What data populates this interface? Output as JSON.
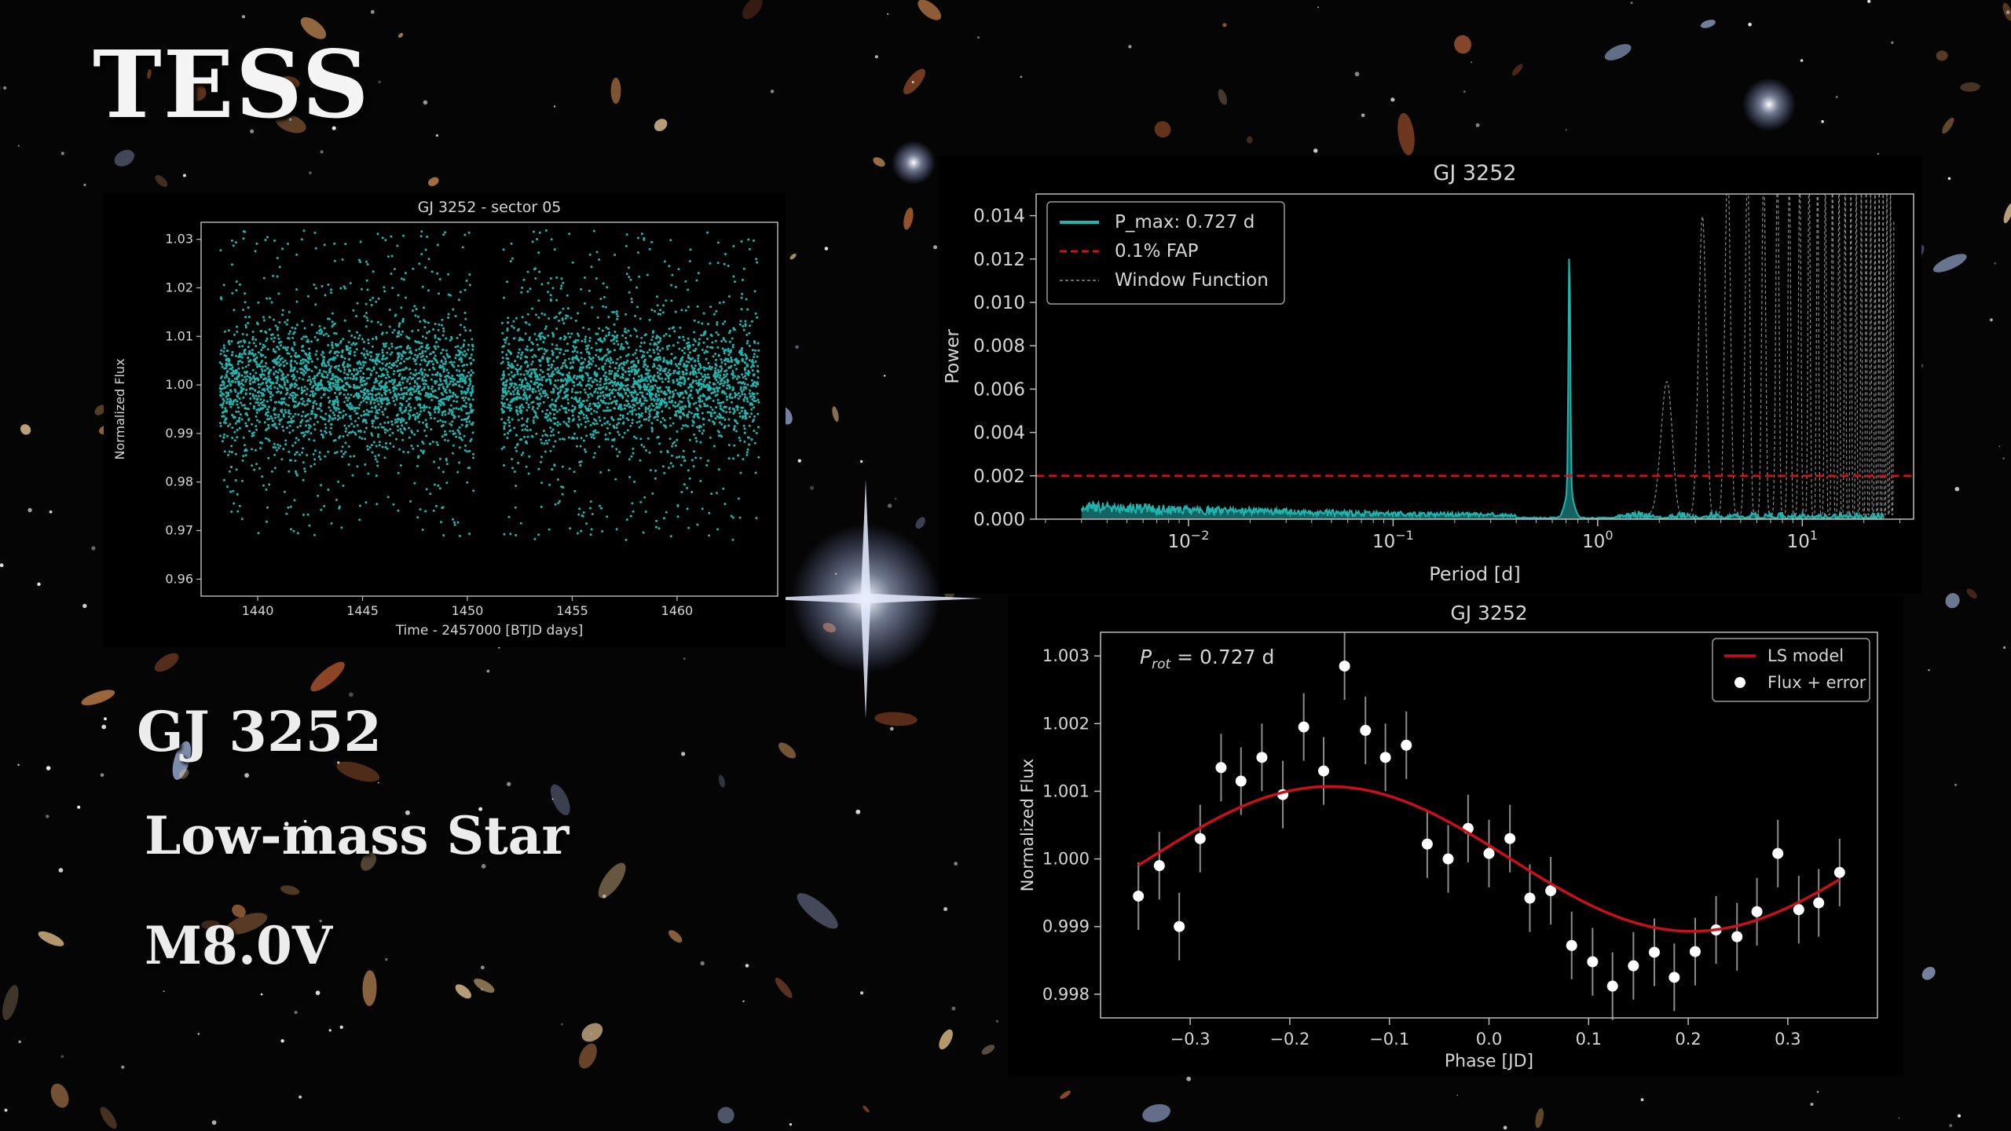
{
  "slide": {
    "mission": "TESS",
    "star_name": "GJ 3252",
    "star_type": "Low-mass Star",
    "spectral_type": "M8.0V"
  },
  "chart_data": [
    {
      "id": "light-curve",
      "type": "scatter",
      "title": "GJ 3252 - sector 05",
      "xlabel": "Time - 2457000 [BTJD days]",
      "ylabel": "Normalized Flux",
      "xlim": [
        1437.3,
        1464.8
      ],
      "ylim": [
        0.9565,
        1.0335
      ],
      "xticks": [
        1440,
        1445,
        1450,
        1455,
        1460
      ],
      "yticks": [
        0.96,
        0.97,
        0.98,
        0.99,
        1.0,
        1.01,
        1.02,
        1.03
      ],
      "ytick_labels": [
        "0.96",
        "0.97",
        "0.98",
        "0.99",
        "1.00",
        "1.01",
        "1.02",
        "1.03"
      ],
      "segments": [
        [
          1438.2,
          1450.3
        ],
        [
          1451.6,
          1463.9
        ]
      ],
      "center": 1.0,
      "scatter_sigma": 0.011,
      "color": "#21b5b0",
      "grid": false
    },
    {
      "id": "periodogram",
      "type": "line",
      "title": "GJ 3252",
      "xlabel": "Period [d]",
      "ylabel": "Power",
      "xscale": "log",
      "xlim": [
        0.0018,
        35
      ],
      "ylim": [
        0,
        0.015
      ],
      "xticks": [
        0.01,
        0.1,
        1,
        10
      ],
      "xtick_labels": [
        [
          "10",
          "−2"
        ],
        [
          "10",
          "−1"
        ],
        [
          "10",
          "0"
        ],
        [
          "10",
          "1"
        ]
      ],
      "yticks": [
        0,
        0.002,
        0.004,
        0.006,
        0.008,
        0.01,
        0.012,
        0.014
      ],
      "ytick_labels": [
        "0.000",
        "0.002",
        "0.004",
        "0.006",
        "0.008",
        "0.010",
        "0.012",
        "0.014"
      ],
      "series": [
        {
          "name": "P_max: 0.727 d",
          "color": "#21b5b0",
          "style": "solid",
          "peak_period": 0.727,
          "peak_power": 0.0112
        },
        {
          "name": "0.1% FAP",
          "color": "#d0111b",
          "style": "dashed",
          "level": 0.002
        },
        {
          "name": "Window Function",
          "color": "#8a8a8a",
          "style": "dashed"
        }
      ],
      "legend": "top-left",
      "grid": false
    },
    {
      "id": "phase-folded",
      "type": "scatter",
      "title": "GJ 3252",
      "annotation": {
        "symbol": "P",
        "subscript": "rot",
        "text": " = 0.727 d"
      },
      "xlabel": "Phase [JD]",
      "ylabel": "Normalized Flux",
      "xlim": [
        -0.39,
        0.39
      ],
      "ylim": [
        0.99765,
        1.00335
      ],
      "xticks": [
        -0.3,
        -0.2,
        -0.1,
        0.0,
        0.1,
        0.2,
        0.3
      ],
      "xtick_labels": [
        "−0.3",
        "−0.2",
        "−0.1",
        "0.0",
        "0.1",
        "0.2",
        "0.3"
      ],
      "yticks": [
        0.998,
        0.999,
        1.0,
        1.001,
        1.002,
        1.003
      ],
      "ytick_labels": [
        "0.998",
        "0.999",
        "1.000",
        "1.001",
        "1.002",
        "1.003"
      ],
      "series": [
        {
          "name": "LS model",
          "color": "#c8101a",
          "model": {
            "offset": 1.0,
            "amplitude": 0.00107,
            "peak_phase": -0.16,
            "period": 0.727
          }
        },
        {
          "name": "Flux + error",
          "color": "#ffffff",
          "x": [
            -0.352,
            -0.331,
            -0.311,
            -0.29,
            -0.269,
            -0.249,
            -0.228,
            -0.207,
            -0.186,
            -0.166,
            -0.145,
            -0.124,
            -0.104,
            -0.083,
            -0.062,
            -0.041,
            -0.021,
            0.0,
            0.021,
            0.041,
            0.062,
            0.083,
            0.104,
            0.124,
            0.145,
            0.166,
            0.186,
            0.207,
            0.228,
            0.249,
            0.269,
            0.29,
            0.311,
            0.331,
            0.352
          ],
          "y": [
            0.99945,
            0.9999,
            0.999,
            1.0003,
            1.00135,
            1.00115,
            1.0015,
            1.00095,
            1.00195,
            1.0013,
            1.00285,
            1.0019,
            1.0015,
            1.00168,
            1.00022,
            1.0,
            1.00045,
            1.00008,
            1.0003,
            0.99942,
            0.99953,
            0.99872,
            0.99848,
            0.99812,
            0.99842,
            0.99862,
            0.99825,
            0.99863,
            0.99895,
            0.99885,
            0.99922,
            1.00008,
            0.99925,
            0.99935,
            0.9998
          ],
          "err": 0.0005
        }
      ],
      "legend": "top-right",
      "grid": false
    }
  ]
}
